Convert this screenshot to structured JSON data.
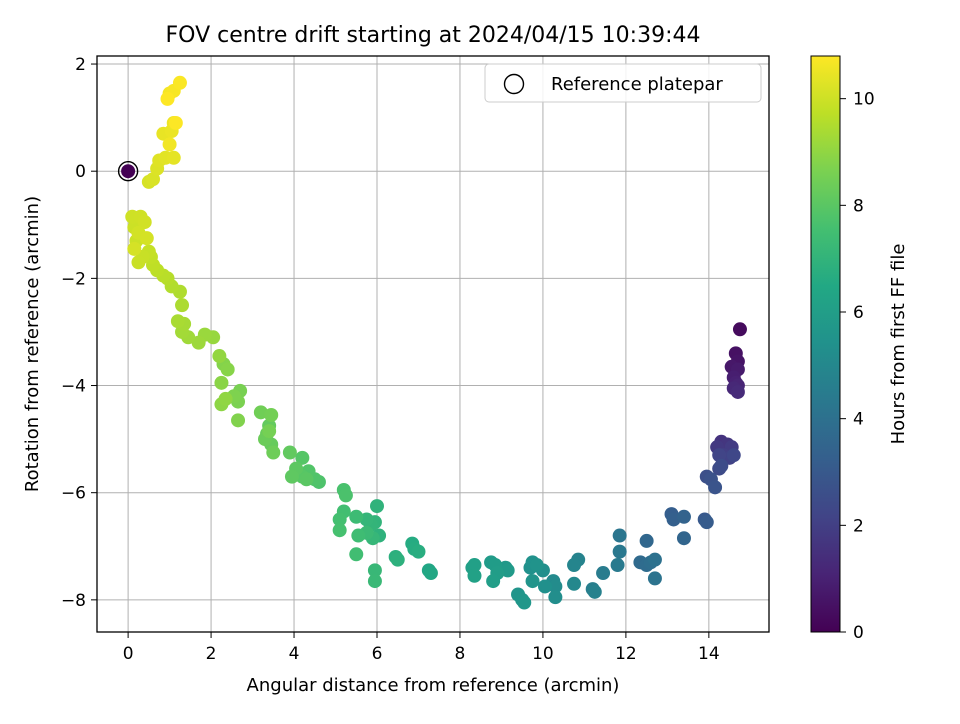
{
  "chart_data": {
    "type": "scatter",
    "title": "FOV centre drift starting at 2024/04/15 10:39:44",
    "xlabel": "Angular distance from reference (arcmin)",
    "ylabel": "Rotation from reference (arcmin)",
    "xlim": [
      -0.75,
      15.45
    ],
    "ylim": [
      -8.6,
      2.15
    ],
    "xticks": [
      0,
      2,
      4,
      6,
      8,
      10,
      12,
      14
    ],
    "yticks": [
      -8,
      -6,
      -4,
      -2,
      0,
      2
    ],
    "grid": true,
    "legend": {
      "position": "top-right",
      "entries": [
        "Reference platepar"
      ]
    },
    "reference_point": {
      "x": 0,
      "y": 0
    },
    "colorbar": {
      "label": "Hours from first FF file",
      "colormap": "viridis",
      "range": [
        0,
        10.8
      ],
      "ticks": [
        0,
        2,
        4,
        6,
        8,
        10
      ]
    },
    "series": [
      {
        "points": [
          [
            0.0,
            0.0,
            0.0
          ],
          [
            14.75,
            -2.95,
            0.3
          ],
          [
            14.65,
            -3.4,
            0.5
          ],
          [
            14.7,
            -3.55,
            0.6
          ],
          [
            14.55,
            -3.65,
            0.7
          ],
          [
            14.7,
            -3.7,
            0.8
          ],
          [
            14.6,
            -3.85,
            0.9
          ],
          [
            14.65,
            -3.95,
            1.0
          ],
          [
            14.7,
            -4.0,
            1.1
          ],
          [
            14.6,
            -4.05,
            1.2
          ],
          [
            14.7,
            -4.12,
            1.3
          ],
          [
            14.3,
            -5.05,
            1.6
          ],
          [
            14.45,
            -5.1,
            1.7
          ],
          [
            14.2,
            -5.15,
            1.8
          ],
          [
            14.55,
            -5.15,
            1.9
          ],
          [
            14.35,
            -5.3,
            2.0
          ],
          [
            14.5,
            -5.35,
            2.1
          ],
          [
            14.25,
            -5.3,
            2.2
          ],
          [
            14.6,
            -5.3,
            2.3
          ],
          [
            14.25,
            -5.55,
            2.4
          ],
          [
            14.3,
            -5.5,
            2.5
          ],
          [
            13.95,
            -5.7,
            2.6
          ],
          [
            14.05,
            -5.75,
            2.7
          ],
          [
            14.15,
            -5.9,
            2.8
          ],
          [
            13.9,
            -6.5,
            3.0
          ],
          [
            13.95,
            -6.55,
            3.1
          ],
          [
            13.1,
            -6.4,
            3.2
          ],
          [
            13.15,
            -6.5,
            3.3
          ],
          [
            13.4,
            -6.45,
            3.4
          ],
          [
            13.4,
            -6.85,
            3.5
          ],
          [
            12.5,
            -6.9,
            3.6
          ],
          [
            12.35,
            -7.3,
            3.7
          ],
          [
            12.5,
            -7.35,
            3.8
          ],
          [
            12.6,
            -7.3,
            3.9
          ],
          [
            12.7,
            -7.25,
            4.0
          ],
          [
            12.7,
            -7.6,
            4.1
          ],
          [
            11.85,
            -6.8,
            4.2
          ],
          [
            11.85,
            -7.1,
            4.3
          ],
          [
            11.8,
            -7.35,
            4.4
          ],
          [
            11.45,
            -7.5,
            4.5
          ],
          [
            11.2,
            -7.8,
            4.6
          ],
          [
            11.25,
            -7.85,
            4.7
          ],
          [
            10.85,
            -7.25,
            4.8
          ],
          [
            10.75,
            -7.35,
            4.9
          ],
          [
            10.75,
            -7.7,
            5.0
          ],
          [
            10.25,
            -7.65,
            5.1
          ],
          [
            10.3,
            -7.75,
            5.2
          ],
          [
            10.3,
            -7.95,
            5.25
          ],
          [
            10.0,
            -7.45,
            5.3
          ],
          [
            10.05,
            -7.75,
            5.35
          ],
          [
            9.7,
            -7.4,
            5.4
          ],
          [
            9.75,
            -7.3,
            5.45
          ],
          [
            9.85,
            -7.35,
            5.5
          ],
          [
            9.75,
            -7.65,
            5.55
          ],
          [
            9.4,
            -7.9,
            5.6
          ],
          [
            9.5,
            -8.0,
            5.65
          ],
          [
            9.55,
            -8.05,
            5.7
          ],
          [
            9.1,
            -7.4,
            5.75
          ],
          [
            9.15,
            -7.45,
            5.8
          ],
          [
            8.75,
            -7.3,
            5.85
          ],
          [
            8.85,
            -7.35,
            5.9
          ],
          [
            8.9,
            -7.5,
            5.95
          ],
          [
            8.8,
            -7.65,
            6.0
          ],
          [
            8.3,
            -7.4,
            6.05
          ],
          [
            8.35,
            -7.35,
            6.1
          ],
          [
            8.35,
            -7.55,
            6.15
          ],
          [
            7.25,
            -7.45,
            6.4
          ],
          [
            7.3,
            -7.5,
            6.45
          ],
          [
            6.85,
            -6.95,
            6.6
          ],
          [
            6.9,
            -7.05,
            6.65
          ],
          [
            7.0,
            -7.1,
            6.7
          ],
          [
            6.45,
            -7.2,
            6.8
          ],
          [
            6.5,
            -7.25,
            6.85
          ],
          [
            6.05,
            -6.8,
            6.9
          ],
          [
            6.0,
            -6.25,
            6.95
          ],
          [
            5.95,
            -6.55,
            7.0
          ],
          [
            5.85,
            -6.6,
            7.05
          ],
          [
            5.75,
            -6.5,
            7.1
          ],
          [
            5.9,
            -6.85,
            7.15
          ],
          [
            5.95,
            -7.45,
            7.2
          ],
          [
            5.95,
            -7.65,
            7.25
          ],
          [
            5.75,
            -6.75,
            7.3
          ],
          [
            5.5,
            -6.45,
            7.35
          ],
          [
            5.55,
            -6.8,
            7.4
          ],
          [
            5.5,
            -7.15,
            7.45
          ],
          [
            5.2,
            -6.35,
            7.5
          ],
          [
            5.1,
            -6.5,
            7.55
          ],
          [
            5.1,
            -6.7,
            7.6
          ],
          [
            5.2,
            -5.95,
            7.65
          ],
          [
            5.25,
            -6.05,
            7.7
          ],
          [
            4.6,
            -5.8,
            7.75
          ],
          [
            4.5,
            -5.75,
            7.8
          ],
          [
            4.35,
            -5.6,
            7.85
          ],
          [
            4.2,
            -5.35,
            7.9
          ],
          [
            4.2,
            -5.7,
            7.95
          ],
          [
            4.3,
            -5.75,
            8.0
          ],
          [
            4.05,
            -5.55,
            8.05
          ],
          [
            3.95,
            -5.7,
            8.1
          ],
          [
            3.9,
            -5.25,
            8.15
          ],
          [
            3.4,
            -4.75,
            8.2
          ],
          [
            3.45,
            -5.1,
            8.25
          ],
          [
            3.35,
            -4.9,
            8.3
          ],
          [
            3.3,
            -5.0,
            8.35
          ],
          [
            3.5,
            -5.25,
            8.4
          ],
          [
            3.2,
            -4.5,
            8.45
          ],
          [
            3.45,
            -4.55,
            8.5
          ],
          [
            3.4,
            -4.85,
            8.55
          ],
          [
            2.7,
            -4.1,
            8.6
          ],
          [
            2.65,
            -4.3,
            8.65
          ],
          [
            2.55,
            -4.2,
            8.7
          ],
          [
            2.65,
            -4.65,
            8.75
          ],
          [
            2.3,
            -3.6,
            8.8
          ],
          [
            2.4,
            -3.7,
            8.85
          ],
          [
            2.25,
            -3.95,
            8.9
          ],
          [
            2.25,
            -4.35,
            8.95
          ],
          [
            2.35,
            -4.25,
            9.0
          ],
          [
            2.2,
            -3.45,
            9.05
          ],
          [
            2.05,
            -3.1,
            9.1
          ],
          [
            1.85,
            -3.05,
            9.15
          ],
          [
            1.7,
            -3.2,
            9.2
          ],
          [
            1.45,
            -3.1,
            9.25
          ],
          [
            1.3,
            -3.0,
            9.3
          ],
          [
            1.35,
            -2.85,
            9.35
          ],
          [
            1.2,
            -2.8,
            9.4
          ],
          [
            1.3,
            -2.5,
            9.45
          ],
          [
            1.25,
            -2.25,
            9.5
          ],
          [
            1.05,
            -2.15,
            9.55
          ],
          [
            0.95,
            -2.0,
            9.6
          ],
          [
            0.85,
            -1.95,
            9.65
          ],
          [
            0.7,
            -1.85,
            9.7
          ],
          [
            0.6,
            -1.75,
            9.75
          ],
          [
            0.55,
            -1.6,
            9.8
          ],
          [
            0.5,
            -1.5,
            9.85
          ],
          [
            0.35,
            -1.6,
            9.9
          ],
          [
            0.25,
            -1.7,
            9.92
          ],
          [
            0.2,
            -1.3,
            9.95
          ],
          [
            0.15,
            -1.05,
            9.97
          ],
          [
            0.1,
            -0.85,
            10.0
          ],
          [
            0.3,
            -0.85,
            10.02
          ],
          [
            0.4,
            -0.95,
            10.05
          ],
          [
            0.25,
            -1.15,
            10.07
          ],
          [
            0.45,
            -1.25,
            10.1
          ],
          [
            0.15,
            -1.45,
            10.12
          ],
          [
            0.5,
            -0.2,
            10.15
          ],
          [
            0.6,
            -0.15,
            10.2
          ],
          [
            0.7,
            0.05,
            10.25
          ],
          [
            0.75,
            0.2,
            10.3
          ],
          [
            0.9,
            0.25,
            10.35
          ],
          [
            1.1,
            0.25,
            10.4
          ],
          [
            0.85,
            0.7,
            10.45
          ],
          [
            1.05,
            0.75,
            10.5
          ],
          [
            1.1,
            0.9,
            10.55
          ],
          [
            1.0,
            0.5,
            10.6
          ],
          [
            1.0,
            1.45,
            10.65
          ],
          [
            1.1,
            1.5,
            10.7
          ],
          [
            1.25,
            1.65,
            10.75
          ],
          [
            1.15,
            0.9,
            10.78
          ],
          [
            0.95,
            1.35,
            10.8
          ]
        ]
      }
    ]
  }
}
